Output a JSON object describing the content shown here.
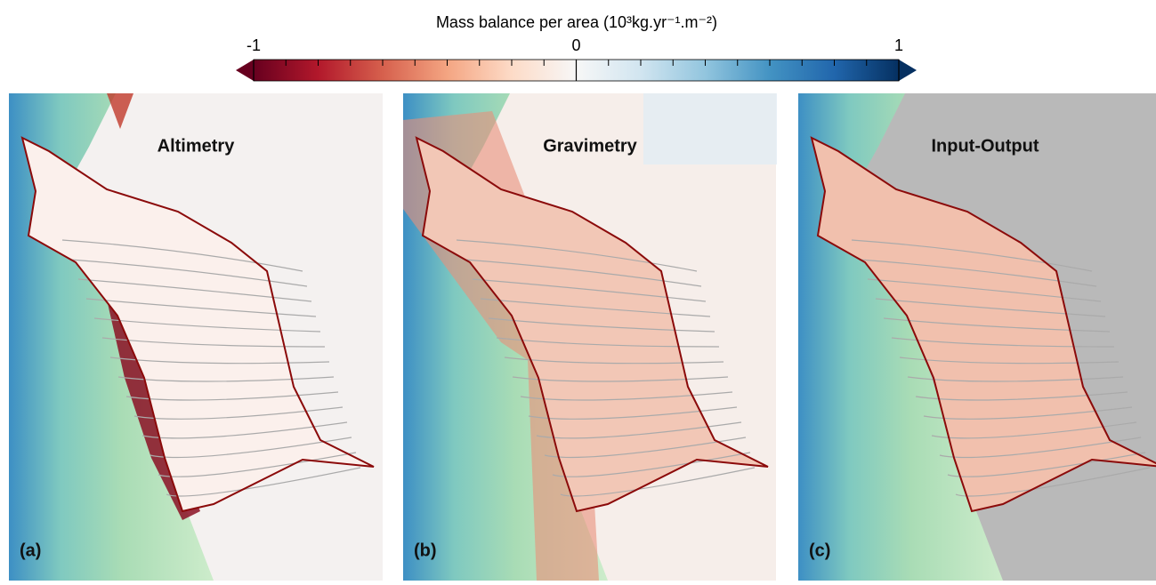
{
  "colorbar": {
    "title": "Mass balance per area (10³kg.yr⁻¹.m⁻²)",
    "range": [
      -1,
      1
    ],
    "ticks": [
      -1,
      0,
      1
    ]
  },
  "panels": [
    {
      "label": "(a)",
      "title": "Altimetry"
    },
    {
      "label": "(b)",
      "title": "Gravimetry"
    },
    {
      "label": "(c)",
      "title": "Input-Output"
    }
  ]
}
